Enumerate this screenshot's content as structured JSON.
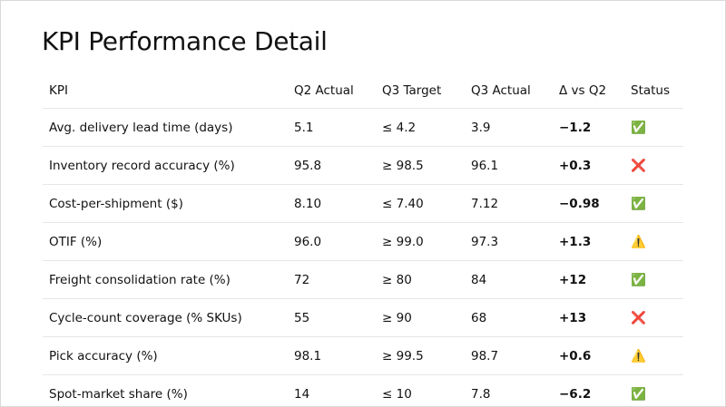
{
  "title": "KPI Performance Detail",
  "table": {
    "headers": [
      "KPI",
      "Q2 Actual",
      "Q3 Target",
      "Q3 Actual",
      "Δ vs Q2",
      "Status"
    ],
    "rows": [
      [
        "Avg. delivery lead time (days)",
        "5.1",
        "≤ 4.2",
        "3.9",
        "−1.2",
        "✅"
      ],
      [
        "Inventory record accuracy (%)",
        "95.8",
        "≥ 98.5",
        "96.1",
        "+0.3",
        "❌"
      ],
      [
        "Cost-per-shipment ($)",
        "8.10",
        "≤ 7.40",
        "7.12",
        "−0.98",
        "✅"
      ],
      [
        "OTIF (%)",
        "96.0",
        "≥ 99.0",
        "97.3",
        "+1.3",
        "⚠️"
      ],
      [
        "Freight consolidation rate (%)",
        "72",
        "≥ 80",
        "84",
        "+12",
        "✅"
      ],
      [
        "Cycle-count coverage (% SKUs)",
        "55",
        "≥ 90",
        "68",
        "+13",
        "❌"
      ],
      [
        "Pick accuracy (%)",
        "98.1",
        "≥ 99.5",
        "98.7",
        "+0.6",
        "⚠️"
      ],
      [
        "Spot-market share (%)",
        "14",
        "≤ 10",
        "7.8",
        "−6.2",
        "✅"
      ]
    ]
  }
}
